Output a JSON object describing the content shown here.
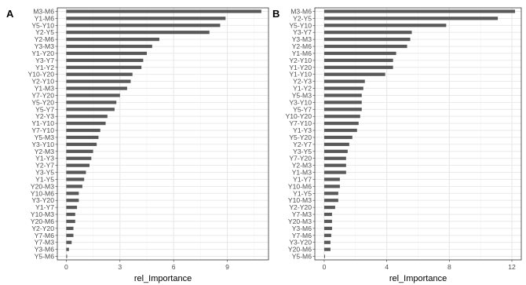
{
  "colors": {
    "bar": "#595959",
    "grid_major": "#e6e6e6",
    "grid_minor": "#f3f3f3",
    "panel_border": "#333333",
    "tick_text": "#4d4d4d"
  },
  "chart_data": [
    {
      "type": "bar",
      "orientation": "horizontal",
      "panel_label": "A",
      "xlabel": "rel_Importance",
      "ylabel": "",
      "xlim": [
        -0.5,
        11.3
      ],
      "xticks": [
        0,
        3,
        6,
        9
      ],
      "grid": true,
      "categories": [
        "M3-M6",
        "Y1-M6",
        "Y5-Y10",
        "Y2-Y5",
        "Y2-M6",
        "Y3-M3",
        "Y1-Y20",
        "Y3-Y7",
        "Y1-Y2",
        "Y10-Y20",
        "Y2-Y10",
        "Y1-M3",
        "Y7-Y20",
        "Y5-Y20",
        "Y5-Y7",
        "Y2-Y3",
        "Y1-Y10",
        "Y7-Y10",
        "Y5-M3",
        "Y3-Y10",
        "Y2-M3",
        "Y1-Y3",
        "Y2-Y7",
        "Y3-Y5",
        "Y1-Y5",
        "Y20-M3",
        "Y10-M6",
        "Y3-Y20",
        "Y1-Y7",
        "Y10-M3",
        "Y20-M6",
        "Y2-Y20",
        "Y7-M6",
        "Y7-M3",
        "Y3-M6",
        "Y5-M6"
      ],
      "values": [
        10.9,
        8.9,
        8.6,
        8.0,
        5.2,
        4.8,
        4.5,
        4.3,
        4.2,
        3.7,
        3.6,
        3.4,
        3.0,
        2.8,
        2.7,
        2.3,
        2.2,
        1.9,
        1.8,
        1.7,
        1.5,
        1.4,
        1.3,
        1.1,
        1.0,
        0.9,
        0.7,
        0.7,
        0.6,
        0.5,
        0.5,
        0.4,
        0.4,
        0.3,
        0.15,
        0.05
      ]
    },
    {
      "type": "bar",
      "orientation": "horizontal",
      "panel_label": "B",
      "xlabel": "rel_Importance",
      "ylabel": "",
      "xlim": [
        -0.6,
        12.6
      ],
      "xticks": [
        0,
        4,
        8,
        12
      ],
      "grid": true,
      "categories": [
        "M3-M6",
        "Y2-Y5",
        "Y5-Y10",
        "Y3-Y7",
        "Y3-M3",
        "Y2-M6",
        "Y1-M6",
        "Y2-Y10",
        "Y1-Y20",
        "Y1-Y10",
        "Y2-Y3",
        "Y1-Y2",
        "Y5-M3",
        "Y3-Y10",
        "Y5-Y7",
        "Y10-Y20",
        "Y7-Y10",
        "Y1-Y3",
        "Y5-Y20",
        "Y2-Y7",
        "Y3-Y5",
        "Y7-Y20",
        "Y2-M3",
        "Y1-M3",
        "Y1-Y7",
        "Y10-M6",
        "Y1-Y5",
        "Y10-M3",
        "Y2-Y20",
        "Y7-M3",
        "Y20-M3",
        "Y3-M6",
        "Y7-M6",
        "Y3-Y20",
        "Y20-M6",
        "Y5-M6"
      ],
      "values": [
        12.2,
        11.1,
        7.8,
        5.6,
        5.5,
        5.3,
        4.6,
        4.4,
        4.4,
        3.9,
        2.6,
        2.5,
        2.4,
        2.4,
        2.4,
        2.3,
        2.2,
        2.1,
        1.8,
        1.6,
        1.5,
        1.4,
        1.4,
        1.4,
        1.0,
        1.0,
        0.9,
        0.9,
        0.7,
        0.5,
        0.5,
        0.5,
        0.45,
        0.4,
        0.4,
        0.05
      ]
    }
  ]
}
